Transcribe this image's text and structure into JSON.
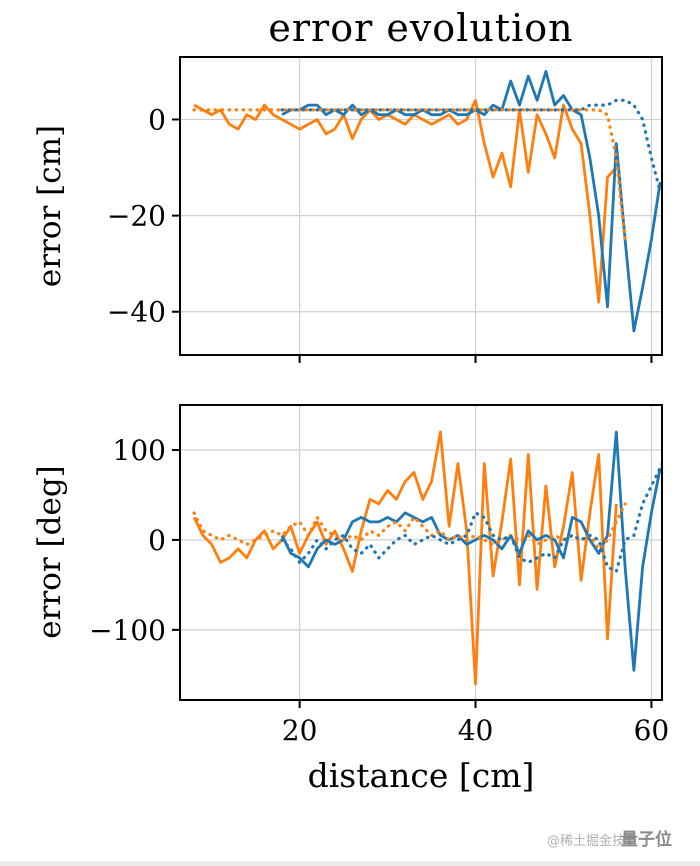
{
  "figure": {
    "title": "error evolution",
    "xlabel": "distance [cm]",
    "watermark": {
      "part1": "@稀土掘金技",
      "part2": "量子位"
    }
  },
  "colors": {
    "blue": "#1f77b4",
    "orange": "#ff7f0e",
    "grid": "#cfcfcf",
    "axis": "#000000"
  },
  "chart_data": [
    {
      "type": "line",
      "title": "error evolution",
      "ylabel": "error [cm]",
      "xlabel": "",
      "xlim": [
        6.4,
        61.2
      ],
      "ylim": [
        -49,
        13
      ],
      "xticks": [
        20,
        40,
        60
      ],
      "yticks": [
        0,
        -20,
        -40
      ],
      "grid": true,
      "legend": "none",
      "series": [
        {
          "name": "orange-solid",
          "color": "#ff7f0e",
          "style": "solid",
          "x": [
            8,
            9,
            10,
            11,
            12,
            13,
            14,
            15,
            16,
            17,
            18,
            19,
            20,
            21,
            22,
            23,
            24,
            25,
            26,
            27,
            28,
            29,
            30,
            31,
            32,
            33,
            34,
            35,
            36,
            37,
            38,
            39,
            40,
            41,
            42,
            43,
            44,
            45,
            46,
            47,
            48,
            49,
            50,
            51,
            52,
            53,
            54,
            55,
            56
          ],
          "y": [
            3,
            2,
            1,
            2,
            -1,
            -2,
            1,
            0,
            3,
            1,
            0,
            -1,
            -2,
            -1,
            0,
            -3,
            -2,
            1,
            -4,
            0,
            2,
            0,
            1,
            0,
            -1,
            1,
            0,
            -1,
            0,
            1,
            -1,
            0,
            4,
            -5,
            -12,
            -7,
            -14,
            2,
            -11,
            1,
            -3,
            -8,
            3,
            -2,
            -5,
            -20,
            -38,
            -12,
            -10
          ]
        },
        {
          "name": "blue-solid",
          "color": "#1f77b4",
          "style": "solid",
          "x": [
            18,
            19,
            20,
            21,
            22,
            23,
            24,
            25,
            26,
            27,
            28,
            29,
            30,
            31,
            32,
            33,
            34,
            35,
            36,
            37,
            38,
            39,
            40,
            41,
            42,
            43,
            44,
            45,
            46,
            47,
            48,
            49,
            50,
            51,
            52,
            53,
            54,
            55,
            56,
            57,
            58,
            59,
            60,
            61
          ],
          "y": [
            1,
            2,
            2,
            3,
            3,
            1,
            2,
            1,
            3,
            1,
            2,
            1,
            1,
            2,
            1,
            1,
            2,
            1,
            1,
            2,
            1,
            1,
            2,
            1,
            3,
            2,
            8,
            3,
            9,
            4,
            10,
            3,
            5,
            2,
            1,
            -8,
            -20,
            -39,
            -5,
            -25,
            -44,
            -35,
            -25,
            -13
          ]
        },
        {
          "name": "orange-dotted",
          "color": "#ff7f0e",
          "style": "dotted",
          "x": [
            8,
            9,
            10,
            11,
            12,
            13,
            14,
            15,
            16,
            17,
            18,
            19,
            20,
            21,
            22,
            23,
            24,
            25,
            26,
            27,
            28,
            29,
            30,
            31,
            32,
            33,
            34,
            35,
            36,
            37,
            38,
            39,
            40,
            41,
            42,
            43,
            44,
            45,
            46,
            47,
            48,
            49,
            50,
            51,
            52,
            53,
            54,
            55,
            56,
            57
          ],
          "y": [
            2,
            2,
            2,
            2,
            2,
            2,
            2,
            2,
            2,
            2,
            2,
            2,
            2,
            2,
            2,
            2,
            2,
            2,
            2,
            2,
            2,
            2,
            2,
            2,
            2,
            2,
            2,
            2,
            2,
            2,
            2,
            2,
            2,
            2,
            2,
            2,
            2,
            2,
            2,
            2,
            2,
            2,
            2,
            2,
            2,
            2,
            2,
            1,
            -8,
            -25
          ]
        },
        {
          "name": "blue-dotted",
          "color": "#1f77b4",
          "style": "dotted",
          "x": [
            18,
            19,
            20,
            21,
            22,
            23,
            24,
            25,
            26,
            27,
            28,
            29,
            30,
            31,
            32,
            33,
            34,
            35,
            36,
            37,
            38,
            39,
            40,
            41,
            42,
            43,
            44,
            45,
            46,
            47,
            48,
            49,
            50,
            51,
            52,
            53,
            54,
            55,
            56,
            57,
            58,
            59,
            60,
            61
          ],
          "y": [
            2,
            2,
            2,
            2,
            2,
            2,
            2,
            2,
            2,
            2,
            2,
            2,
            2,
            2,
            2,
            2,
            2,
            2,
            2,
            2,
            2,
            2,
            2,
            2,
            2,
            2,
            2,
            2,
            2,
            2,
            2,
            2,
            2,
            2,
            2,
            3,
            3,
            3,
            4,
            4,
            3,
            0,
            -8,
            -15
          ]
        }
      ]
    },
    {
      "type": "line",
      "title": "",
      "ylabel": "error [deg]",
      "xlabel": "distance [cm]",
      "xlim": [
        6.4,
        61.2
      ],
      "ylim": [
        -178,
        150
      ],
      "xticks": [
        20,
        40,
        60
      ],
      "yticks": [
        100,
        0,
        -100
      ],
      "grid": true,
      "legend": "none",
      "series": [
        {
          "name": "orange-solid",
          "color": "#ff7f0e",
          "style": "solid",
          "x": [
            8,
            9,
            10,
            11,
            12,
            13,
            14,
            15,
            16,
            17,
            18,
            19,
            20,
            21,
            22,
            23,
            24,
            25,
            26,
            27,
            28,
            29,
            30,
            31,
            32,
            33,
            34,
            35,
            36,
            37,
            38,
            39,
            40,
            41,
            42,
            43,
            44,
            45,
            46,
            47,
            48,
            49,
            50,
            51,
            52,
            53,
            54,
            55,
            56
          ],
          "y": [
            25,
            5,
            -5,
            -25,
            -20,
            -10,
            -20,
            0,
            10,
            -10,
            0,
            15,
            -15,
            5,
            20,
            -5,
            10,
            -10,
            -35,
            10,
            45,
            40,
            55,
            45,
            65,
            75,
            45,
            65,
            120,
            15,
            85,
            10,
            -160,
            85,
            -40,
            20,
            90,
            -50,
            95,
            -55,
            60,
            -30,
            15,
            75,
            -45,
            30,
            95,
            -110,
            40
          ]
        },
        {
          "name": "blue-solid",
          "color": "#1f77b4",
          "style": "solid",
          "x": [
            18,
            19,
            20,
            21,
            22,
            23,
            24,
            25,
            26,
            27,
            28,
            29,
            30,
            31,
            32,
            33,
            34,
            35,
            36,
            37,
            38,
            39,
            40,
            41,
            42,
            43,
            44,
            45,
            46,
            47,
            48,
            49,
            50,
            51,
            52,
            53,
            54,
            55,
            56,
            57,
            58,
            59,
            60,
            61
          ],
          "y": [
            5,
            -15,
            -20,
            -30,
            -10,
            0,
            -5,
            0,
            20,
            25,
            20,
            20,
            25,
            20,
            30,
            25,
            20,
            25,
            5,
            0,
            5,
            -5,
            0,
            5,
            0,
            -10,
            5,
            -15,
            10,
            0,
            5,
            0,
            -20,
            25,
            20,
            0,
            -15,
            5,
            120,
            -30,
            -145,
            -30,
            30,
            80
          ]
        },
        {
          "name": "orange-dotted",
          "color": "#ff7f0e",
          "style": "dotted",
          "x": [
            8,
            9,
            10,
            11,
            12,
            13,
            14,
            15,
            16,
            17,
            18,
            19,
            20,
            21,
            22,
            23,
            24,
            25,
            26,
            27,
            28,
            29,
            30,
            31,
            32,
            33,
            34,
            35,
            36,
            37,
            38,
            39,
            40,
            41,
            42,
            43,
            44,
            45,
            46,
            47,
            48,
            49,
            50,
            51,
            52,
            53,
            54,
            55,
            56,
            57
          ],
          "y": [
            30,
            10,
            5,
            0,
            5,
            0,
            -5,
            0,
            5,
            10,
            5,
            15,
            20,
            5,
            25,
            10,
            5,
            0,
            5,
            0,
            10,
            5,
            15,
            20,
            10,
            25,
            15,
            5,
            10,
            0,
            5,
            0,
            5,
            0,
            -5,
            0,
            5,
            0,
            5,
            -5,
            0,
            5,
            0,
            5,
            0,
            5,
            -10,
            0,
            20,
            40
          ]
        },
        {
          "name": "blue-dotted",
          "color": "#1f77b4",
          "style": "dotted",
          "x": [
            18,
            19,
            20,
            21,
            22,
            23,
            24,
            25,
            26,
            27,
            28,
            29,
            30,
            31,
            32,
            33,
            34,
            35,
            36,
            37,
            38,
            39,
            40,
            41,
            42,
            43,
            44,
            45,
            46,
            47,
            48,
            49,
            50,
            51,
            52,
            53,
            54,
            55,
            56,
            57,
            58,
            59,
            60,
            61,
            62
          ],
          "y": [
            0,
            -10,
            -25,
            -15,
            0,
            -10,
            0,
            5,
            -10,
            -15,
            -5,
            -20,
            -10,
            0,
            5,
            -5,
            0,
            5,
            0,
            -5,
            0,
            5,
            30,
            25,
            5,
            0,
            5,
            -20,
            -25,
            -20,
            -15,
            -20,
            0,
            5,
            0,
            5,
            0,
            -30,
            -35,
            0,
            5,
            40,
            60,
            80,
            100
          ]
        }
      ]
    }
  ]
}
